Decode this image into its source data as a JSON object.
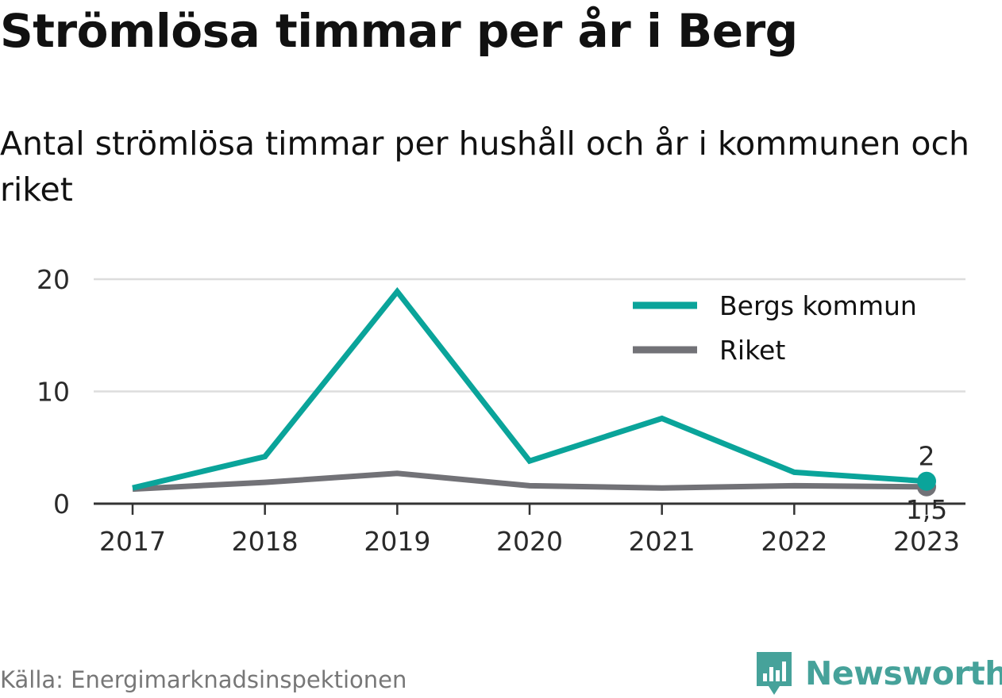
{
  "title": "Strömlösa timmar per år i Berg",
  "subtitle": "Antal strömlösa timmar per hushåll och år i kommunen och riket",
  "source": "Källa: Energimarknadsinspektionen",
  "brand": {
    "name": "Newsworthy",
    "icon": "newsworthy-logo-icon",
    "color": "#46a29a"
  },
  "colors": {
    "accent": "#0aa49a",
    "secondary": "#727277",
    "grid": "#dddddd",
    "axis": "#333333"
  },
  "chart_data": {
    "type": "line",
    "title": "Strömlösa timmar per år i Berg",
    "subtitle": "Antal strömlösa timmar per hushåll och år i kommunen och riket",
    "xlabel": "",
    "ylabel": "",
    "categories": [
      "2017",
      "2018",
      "2019",
      "2020",
      "2021",
      "2022",
      "2023"
    ],
    "yticks": [
      "0",
      "10",
      "20"
    ],
    "ylim": [
      0,
      20
    ],
    "grid": true,
    "legend_position": "top-right",
    "series": [
      {
        "name": "Bergs kommun",
        "color": "#0aa49a",
        "values": [
          1.4,
          4.2,
          18.9,
          3.8,
          7.6,
          2.8,
          2.0
        ],
        "end_label": "2"
      },
      {
        "name": "Riket",
        "color": "#727277",
        "values": [
          1.3,
          1.9,
          2.7,
          1.6,
          1.4,
          1.6,
          1.5
        ],
        "end_label": "1,5"
      }
    ]
  }
}
